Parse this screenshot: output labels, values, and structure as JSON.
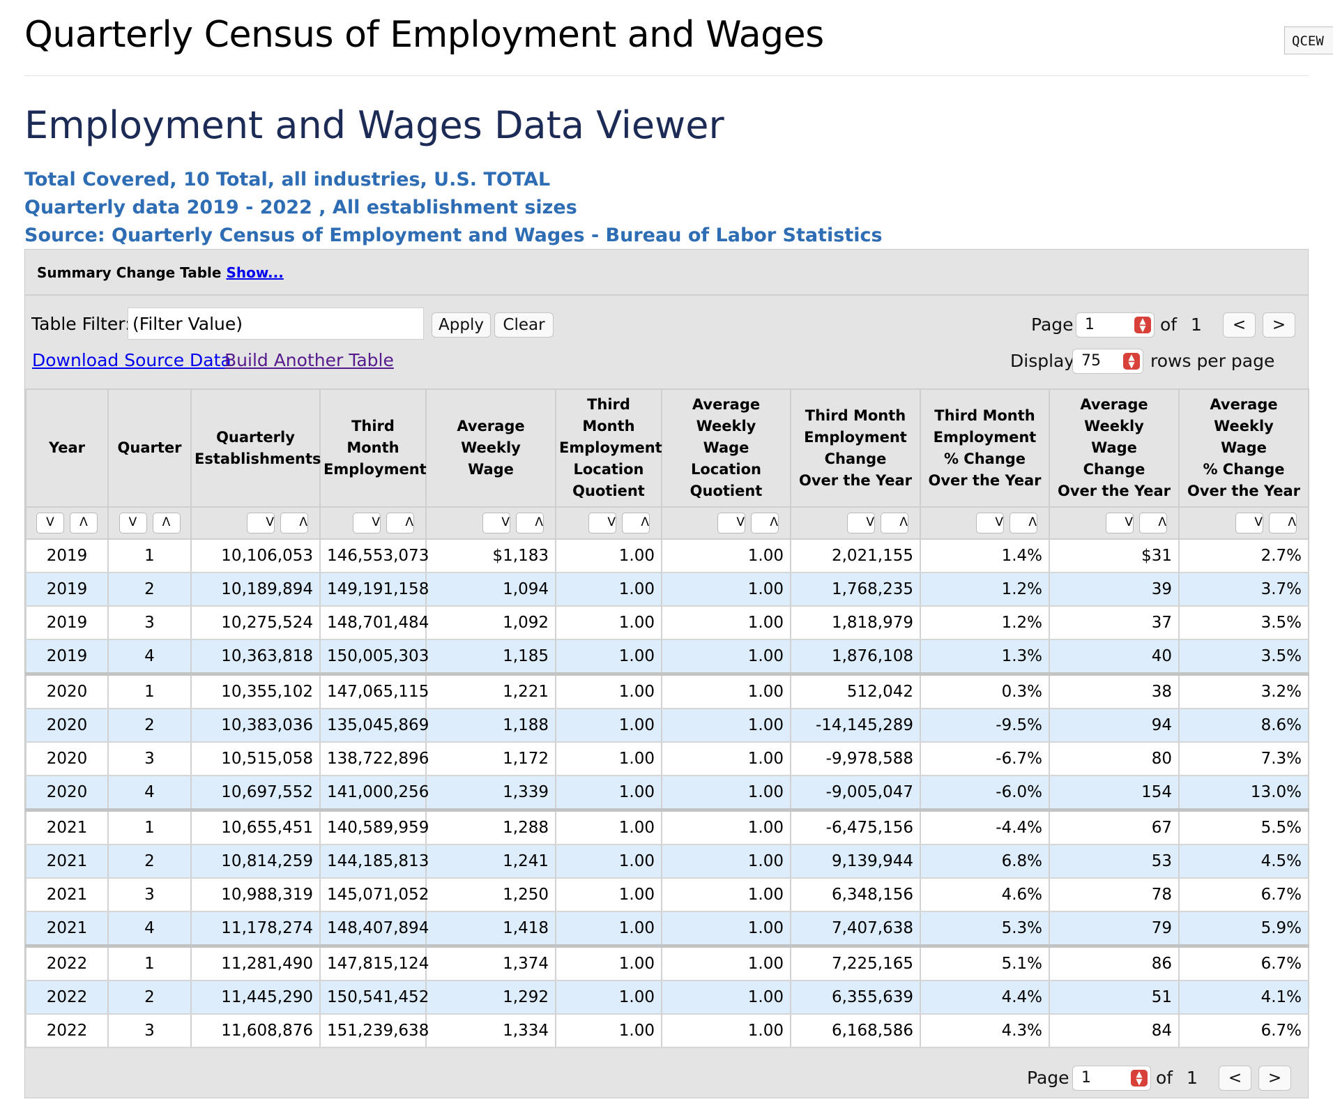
{
  "site": {
    "title": "Quarterly Census of Employment and Wages",
    "badge": "QCEW"
  },
  "viewer_title": "Employment and Wages Data Viewer",
  "subtitles": [
    "Total Covered, 10 Total, all industries, U.S. TOTAL",
    "Quarterly data 2019 - 2022 , All establishment sizes",
    "Source: Quarterly Census of Employment and Wages - Bureau of Labor Statistics"
  ],
  "summary": {
    "label": "Summary Change Table",
    "show_link": "Show..."
  },
  "filter": {
    "label": "Table Filter:",
    "value": "(Filter Value)",
    "apply": "Apply",
    "clear": "Clear"
  },
  "pager": {
    "page_label": "Page",
    "page": "1",
    "of_label": "of",
    "total": "1",
    "prev": "<",
    "next": ">"
  },
  "display": {
    "label": "Display",
    "value": "75",
    "suffix": "rows per page"
  },
  "links": {
    "download": "Download Source Data",
    "build": "Build Another Table"
  },
  "sort_glyphs": {
    "desc": "V",
    "asc": "Λ"
  },
  "columns": [
    [
      "Year"
    ],
    [
      "Quarter"
    ],
    [
      "Quarterly",
      "Establishments"
    ],
    [
      "Third Month",
      "Employment"
    ],
    [
      "Average",
      "Weekly",
      "Wage"
    ],
    [
      "Third Month",
      "Employment",
      "Location",
      "Quotient"
    ],
    [
      "Average",
      "Weekly",
      "Wage",
      "Location",
      "Quotient"
    ],
    [
      "Third Month",
      "Employment",
      "Change",
      "Over the Year"
    ],
    [
      "Third Month",
      "Employment",
      "% Change",
      "Over the Year"
    ],
    [
      "Average",
      "Weekly",
      "Wage",
      "Change",
      "Over the Year"
    ],
    [
      "Average",
      "Weekly",
      "Wage",
      "% Change",
      "Over the Year"
    ]
  ],
  "rows": [
    [
      "2019",
      "1",
      "10,106,053",
      "146,553,073",
      "$1,183",
      "1.00",
      "1.00",
      "2,021,155",
      "1.4%",
      "$31",
      "2.7%"
    ],
    [
      "2019",
      "2",
      "10,189,894",
      "149,191,158",
      "1,094",
      "1.00",
      "1.00",
      "1,768,235",
      "1.2%",
      "39",
      "3.7%"
    ],
    [
      "2019",
      "3",
      "10,275,524",
      "148,701,484",
      "1,092",
      "1.00",
      "1.00",
      "1,818,979",
      "1.2%",
      "37",
      "3.5%"
    ],
    [
      "2019",
      "4",
      "10,363,818",
      "150,005,303",
      "1,185",
      "1.00",
      "1.00",
      "1,876,108",
      "1.3%",
      "40",
      "3.5%"
    ],
    [
      "2020",
      "1",
      "10,355,102",
      "147,065,115",
      "1,221",
      "1.00",
      "1.00",
      "512,042",
      "0.3%",
      "38",
      "3.2%"
    ],
    [
      "2020",
      "2",
      "10,383,036",
      "135,045,869",
      "1,188",
      "1.00",
      "1.00",
      "-14,145,289",
      "-9.5%",
      "94",
      "8.6%"
    ],
    [
      "2020",
      "3",
      "10,515,058",
      "138,722,896",
      "1,172",
      "1.00",
      "1.00",
      "-9,978,588",
      "-6.7%",
      "80",
      "7.3%"
    ],
    [
      "2020",
      "4",
      "10,697,552",
      "141,000,256",
      "1,339",
      "1.00",
      "1.00",
      "-9,005,047",
      "-6.0%",
      "154",
      "13.0%"
    ],
    [
      "2021",
      "1",
      "10,655,451",
      "140,589,959",
      "1,288",
      "1.00",
      "1.00",
      "-6,475,156",
      "-4.4%",
      "67",
      "5.5%"
    ],
    [
      "2021",
      "2",
      "10,814,259",
      "144,185,813",
      "1,241",
      "1.00",
      "1.00",
      "9,139,944",
      "6.8%",
      "53",
      "4.5%"
    ],
    [
      "2021",
      "3",
      "10,988,319",
      "145,071,052",
      "1,250",
      "1.00",
      "1.00",
      "6,348,156",
      "4.6%",
      "78",
      "6.7%"
    ],
    [
      "2021",
      "4",
      "11,178,274",
      "148,407,894",
      "1,418",
      "1.00",
      "1.00",
      "7,407,638",
      "5.3%",
      "79",
      "5.9%"
    ],
    [
      "2022",
      "1",
      "11,281,490",
      "147,815,124",
      "1,374",
      "1.00",
      "1.00",
      "7,225,165",
      "5.1%",
      "86",
      "6.7%"
    ],
    [
      "2022",
      "2",
      "11,445,290",
      "150,541,452",
      "1,292",
      "1.00",
      "1.00",
      "6,355,639",
      "4.4%",
      "51",
      "4.1%"
    ],
    [
      "2022",
      "3",
      "11,608,876",
      "151,239,638",
      "1,334",
      "1.00",
      "1.00",
      "6,168,586",
      "4.3%",
      "84",
      "6.7%"
    ]
  ]
}
